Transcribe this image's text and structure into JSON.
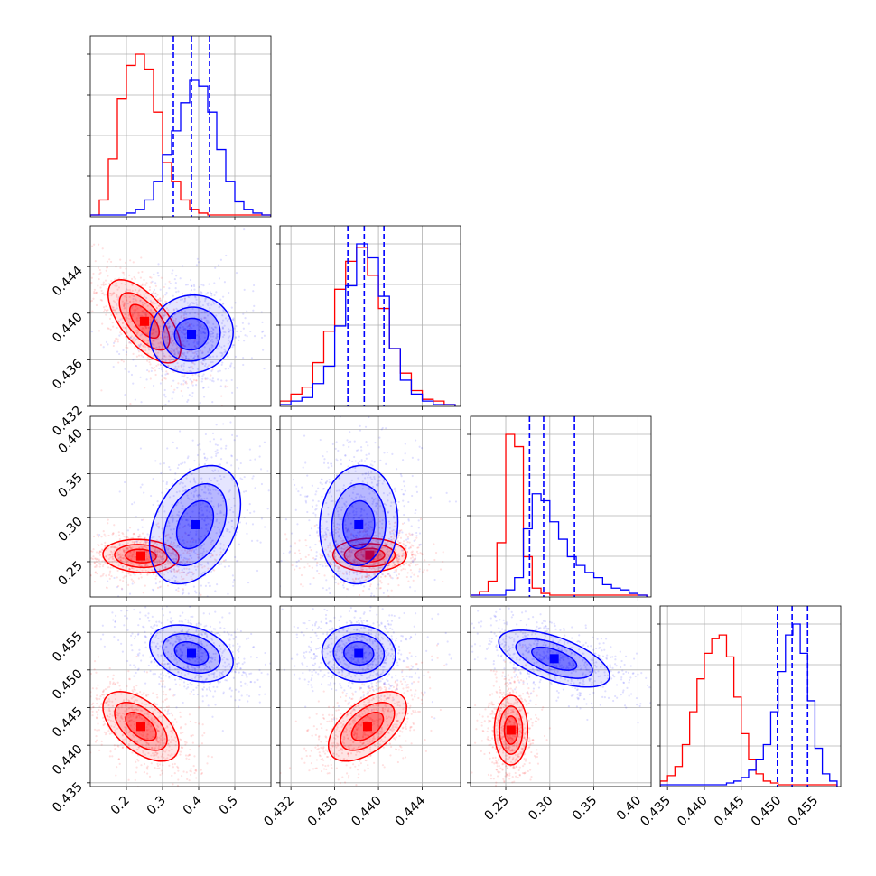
{
  "chart_data": {
    "type": "corner",
    "parameters": 4,
    "grid": true,
    "series": [
      {
        "color": "#ff0000"
      },
      {
        "color": "#0000ff"
      }
    ],
    "quantile_lines_series": 1,
    "diagonal": [
      {
        "param": 0,
        "xlim": [
          0.1,
          0.6
        ],
        "xticks": [
          0.2,
          0.3,
          0.4,
          0.5
        ],
        "x_ticklabels": [
          "0.2",
          "0.3",
          "0.4",
          "0.5"
        ],
        "quantiles": [
          0.33,
          0.38,
          0.43
        ],
        "bins": [
          0.1,
          0.125,
          0.15,
          0.175,
          0.2,
          0.225,
          0.25,
          0.275,
          0.3,
          0.325,
          0.35,
          0.375,
          0.4,
          0.425,
          0.45,
          0.475,
          0.5,
          0.525,
          0.55,
          0.575,
          0.6
        ],
        "counts": [
          [
            0,
            8,
            30,
            62,
            80,
            86,
            78,
            55,
            28,
            18,
            8,
            3,
            1,
            0,
            0,
            0,
            0,
            0,
            0,
            0
          ],
          [
            0,
            0,
            0,
            0,
            1,
            3,
            8,
            18,
            32,
            45,
            60,
            72,
            69,
            55,
            35,
            18,
            7,
            3,
            1,
            0
          ]
        ]
      },
      {
        "param": 1,
        "xlim": [
          0.431,
          0.4475
        ],
        "xticks": [
          0.432,
          0.436,
          0.44,
          0.444
        ],
        "x_ticklabels": [
          "0.432",
          "0.436",
          "0.440",
          "0.444"
        ],
        "quantiles": [
          0.4372,
          0.4387,
          0.4405
        ],
        "bins": [
          0.431,
          0.432,
          0.433,
          0.434,
          0.435,
          0.436,
          0.437,
          0.438,
          0.439,
          0.44,
          0.441,
          0.442,
          0.443,
          0.444,
          0.445,
          0.446,
          0.447
        ],
        "counts": [
          [
            2,
            6,
            10,
            24,
            42,
            66,
            82,
            90,
            74,
            55,
            32,
            18,
            8,
            3,
            2,
            0
          ],
          [
            0,
            2,
            4,
            12,
            22,
            45,
            68,
            92,
            84,
            62,
            32,
            14,
            6,
            2,
            0,
            0
          ]
        ]
      },
      {
        "param": 2,
        "xlim": [
          0.21,
          0.415
        ],
        "xticks": [
          0.25,
          0.3,
          0.35,
          0.4
        ],
        "x_ticklabels": [
          "0.25",
          "0.30",
          "0.35",
          "0.40"
        ],
        "quantiles": [
          0.277,
          0.293,
          0.328
        ],
        "bins": [
          0.21,
          0.22,
          0.23,
          0.24,
          0.25,
          0.26,
          0.27,
          0.28,
          0.29,
          0.3,
          0.31,
          0.32,
          0.33,
          0.34,
          0.35,
          0.36,
          0.37,
          0.38,
          0.39,
          0.4,
          0.41
        ],
        "counts": [
          [
            0,
            2,
            8,
            30,
            92,
            85,
            22,
            4,
            1,
            0,
            0,
            0,
            0,
            0,
            0,
            0,
            0,
            0,
            0,
            0
          ],
          [
            0,
            0,
            0,
            0,
            3,
            10,
            38,
            58,
            54,
            42,
            32,
            22,
            17,
            13,
            10,
            6,
            4,
            3,
            1,
            0
          ]
        ]
      },
      {
        "param": 3,
        "xlim": [
          0.434,
          0.4585
        ],
        "xticks": [
          0.435,
          0.44,
          0.445,
          0.45,
          0.455
        ],
        "x_ticklabels": [
          "0.435",
          "0.440",
          "0.445",
          "0.450",
          "0.455"
        ],
        "quantiles": [
          0.4499,
          0.4519,
          0.454
        ],
        "bins": [
          0.434,
          0.435,
          0.436,
          0.437,
          0.438,
          0.439,
          0.44,
          0.441,
          0.442,
          0.443,
          0.444,
          0.445,
          0.446,
          0.447,
          0.448,
          0.449,
          0.45,
          0.451,
          0.452,
          0.453,
          0.454,
          0.455,
          0.456,
          0.457,
          0.458
        ],
        "counts": [
          [
            2,
            5,
            10,
            22,
            40,
            58,
            72,
            80,
            82,
            70,
            48,
            28,
            14,
            6,
            2,
            1,
            0,
            0,
            0,
            0,
            0,
            0,
            0,
            0
          ],
          [
            0,
            0,
            0,
            0,
            0,
            0,
            0,
            0,
            0,
            1,
            2,
            4,
            8,
            14,
            22,
            40,
            62,
            82,
            88,
            72,
            46,
            20,
            6,
            2
          ]
        ]
      }
    ],
    "y_ticks": {
      "1": {
        "ylim": [
          0.432,
          0.4475
        ],
        "ticks": [
          0.432,
          0.436,
          0.44,
          0.444
        ],
        "labels": [
          "0.432",
          "0.436",
          "0.440",
          "0.444"
        ]
      },
      "2": {
        "ylim": [
          0.21,
          0.415
        ],
        "ticks": [
          0.25,
          0.3,
          0.35,
          0.4
        ],
        "labels": [
          "0.25",
          "0.30",
          "0.35",
          "0.40"
        ]
      },
      "3": {
        "ylim": [
          0.4345,
          0.4585
        ],
        "ticks": [
          0.435,
          0.44,
          0.445,
          0.45,
          0.455
        ],
        "labels": [
          "0.435",
          "0.440",
          "0.445",
          "0.450",
          "0.455"
        ]
      }
    },
    "pairs": [
      {
        "row": 1,
        "col": 0,
        "red": {
          "mean": [
            0.25,
            0.4393
          ],
          "sd": [
            0.048,
            0.0017
          ],
          "rho": -0.65
        },
        "blue": {
          "mean": [
            0.38,
            0.4382
          ],
          "sd": [
            0.055,
            0.0016
          ],
          "rho": 0.05
        }
      },
      {
        "row": 2,
        "col": 0,
        "red": {
          "mean": [
            0.24,
            0.2565
          ],
          "sd": [
            0.05,
            0.009
          ],
          "rho": -0.1
        },
        "blue": {
          "mean": [
            0.39,
            0.292
          ],
          "sd": [
            0.06,
            0.032
          ],
          "rho": 0.35
        }
      },
      {
        "row": 2,
        "col": 1,
        "red": {
          "mean": [
            0.4392,
            0.2575
          ],
          "sd": [
            0.0016,
            0.009
          ],
          "rho": 0.0
        },
        "blue": {
          "mean": [
            0.4382,
            0.292
          ],
          "sd": [
            0.0017,
            0.032
          ],
          "rho": 0.05
        }
      },
      {
        "row": 3,
        "col": 0,
        "red": {
          "mean": [
            0.24,
            0.4425
          ],
          "sd": [
            0.05,
            0.0022
          ],
          "rho": -0.55
        },
        "blue": {
          "mean": [
            0.38,
            0.4522
          ],
          "sd": [
            0.055,
            0.0018
          ],
          "rho": -0.3
        }
      },
      {
        "row": 3,
        "col": 1,
        "red": {
          "mean": [
            0.439,
            0.4425
          ],
          "sd": [
            0.0017,
            0.0022
          ],
          "rho": 0.55
        },
        "blue": {
          "mean": [
            0.4382,
            0.4522
          ],
          "sd": [
            0.0016,
            0.0018
          ],
          "rho": -0.05
        }
      },
      {
        "row": 3,
        "col": 2,
        "red": {
          "mean": [
            0.256,
            0.442
          ],
          "sd": [
            0.009,
            0.0022
          ],
          "rho": 0.0
        },
        "blue": {
          "mean": [
            0.305,
            0.4515
          ],
          "sd": [
            0.03,
            0.0018
          ],
          "rho": -0.6
        }
      }
    ]
  }
}
